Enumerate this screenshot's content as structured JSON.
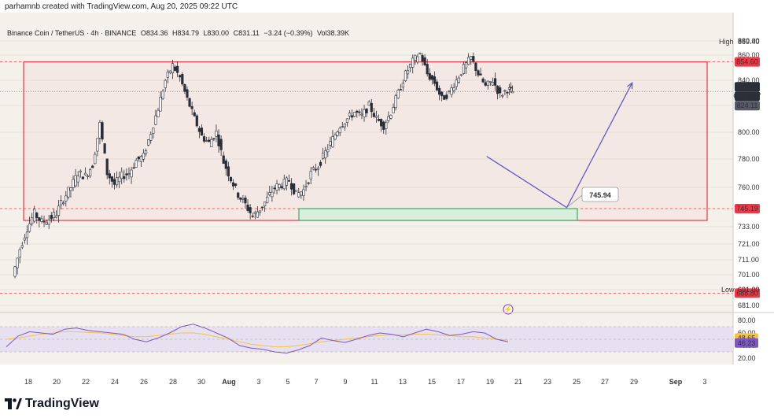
{
  "credit": "parhamnb created with TradingView.com, Aug 20, 2025 09:22 UTC",
  "symbol": {
    "name": "Binance Coin / TetherUS · 4h · BINANCE",
    "open": "O834.36",
    "high": "H834.79",
    "low": "L830.00",
    "close": "C831.11",
    "change": "−3.24 (−0.39%)",
    "volume": "Vol38.39K"
  },
  "brand": "TradingView",
  "colors": {
    "up": "#2a2e39",
    "down": "#2a2e39",
    "box_border": "#f23645",
    "dashed": "#f23645",
    "zone_fill": "#d7f0dc",
    "zone_border": "#1e9a5a",
    "arrow": "#5b4fc4",
    "rsi_line": "#7e57c2",
    "rsi_ma": "#f5c542",
    "rsi_band": "#e6e0f0"
  },
  "chart_data": [
    {
      "type": "candlestick",
      "price_ticks": [
        "880.00",
        "860.00",
        "840.00",
        "820.00",
        "800.00",
        "780.00",
        "760.00",
        "745.19",
        "733.00",
        "721.00",
        "711.00",
        "701.00",
        "691.00",
        "681.00"
      ],
      "x_ticks": [
        "18",
        "20",
        "22",
        "24",
        "26",
        "28",
        "30",
        "Aug",
        "3",
        "5",
        "7",
        "9",
        "11",
        "13",
        "15",
        "17",
        "19",
        "21",
        "23",
        "25",
        "27",
        "29",
        "Sep",
        "3"
      ],
      "labels": {
        "high_label": "High",
        "high_value": "869.40",
        "low_label": "Low",
        "low_value": "691.00",
        "level_top": "854.60",
        "level_bottom": "745.19",
        "level_low": "688.80",
        "last_price": "831.11",
        "countdown": "02:37:37",
        "prev_close": "824.11",
        "target": "745.94"
      },
      "levels": {
        "top": 854.6,
        "bottom": 745.19,
        "low": 688.8,
        "last": 831.11,
        "target": 745.94
      },
      "close_path": [
        [
          "Jul 17 00:00",
          700
        ],
        [
          "Jul 17 12:00",
          718
        ],
        [
          "Jul 18 00:00",
          732
        ],
        [
          "Jul 18 12:00",
          742
        ],
        [
          "Jul 19 00:00",
          736
        ],
        [
          "Jul 19 12:00",
          738
        ],
        [
          "Jul 20 00:00",
          742
        ],
        [
          "Jul 20 12:00",
          752
        ],
        [
          "Jul 21 00:00",
          760
        ],
        [
          "Jul 21 12:00",
          770
        ],
        [
          "Jul 22 00:00",
          768
        ],
        [
          "Jul 22 12:00",
          776
        ],
        [
          "Jul 23 00:00",
          806
        ],
        [
          "Jul 23 12:00",
          770
        ],
        [
          "Jul 24 00:00",
          762
        ],
        [
          "Jul 24 12:00",
          768
        ],
        [
          "Jul 25 00:00",
          770
        ],
        [
          "Jul 25 12:00",
          779
        ],
        [
          "Jul 26 00:00",
          782
        ],
        [
          "Jul 26 12:00",
          800
        ],
        [
          "Jul 27 00:00",
          818
        ],
        [
          "Jul 27 12:00",
          840
        ],
        [
          "Jul 28 00:00",
          852
        ],
        [
          "Jul 28 12:00",
          842
        ],
        [
          "Jul 29 00:00",
          825
        ],
        [
          "Jul 29 12:00",
          810
        ],
        [
          "Jul 30 00:00",
          797
        ],
        [
          "Jul 30 12:00",
          792
        ],
        [
          "Jul 31 00:00",
          800
        ],
        [
          "Jul 31 12:00",
          778
        ],
        [
          "Aug 1 00:00",
          766
        ],
        [
          "Aug 1 12:00",
          755
        ],
        [
          "Aug 2 00:00",
          748
        ],
        [
          "Aug 2 12:00",
          740
        ],
        [
          "Aug 3 00:00",
          745
        ],
        [
          "Aug 3 12:00",
          752
        ],
        [
          "Aug 4 00:00",
          760
        ],
        [
          "Aug 4 12:00",
          762
        ],
        [
          "Aug 5 00:00",
          765
        ],
        [
          "Aug 5 12:00",
          755
        ],
        [
          "Aug 6 00:00",
          758
        ],
        [
          "Aug 6 12:00",
          770
        ],
        [
          "Aug 7 00:00",
          775
        ],
        [
          "Aug 7 12:00",
          785
        ],
        [
          "Aug 8 00:00",
          795
        ],
        [
          "Aug 8 12:00",
          805
        ],
        [
          "Aug 9 00:00",
          810
        ],
        [
          "Aug 9 12:00",
          815
        ],
        [
          "Aug 10 00:00",
          812
        ],
        [
          "Aug 10 12:00",
          820
        ],
        [
          "Aug 11 00:00",
          810
        ],
        [
          "Aug 11 12:00",
          805
        ],
        [
          "Aug 12 00:00",
          815
        ],
        [
          "Aug 12 12:00",
          830
        ],
        [
          "Aug 13 00:00",
          845
        ],
        [
          "Aug 13 12:00",
          855
        ],
        [
          "Aug 14 00:00",
          862
        ],
        [
          "Aug 14 12:00",
          845
        ],
        [
          "Aug 15 00:00",
          838
        ],
        [
          "Aug 15 12:00",
          825
        ],
        [
          "Aug 16 00:00",
          830
        ],
        [
          "Aug 16 12:00",
          840
        ],
        [
          "Aug 17 00:00",
          850
        ],
        [
          "Aug 17 12:00",
          858
        ],
        [
          "Aug 18 00:00",
          845
        ],
        [
          "Aug 18 12:00",
          835
        ],
        [
          "Aug 19 00:00",
          840
        ],
        [
          "Aug 19 12:00",
          828
        ],
        [
          "Aug 20 00:00",
          833
        ],
        [
          "Aug 20 08:00",
          831
        ]
      ],
      "projection": [
        [
          "Aug 18 12:00",
          782
        ],
        [
          "Aug 24 00:00",
          745.94
        ],
        [
          "Aug 28 12:00",
          838
        ]
      ]
    },
    {
      "type": "line",
      "name": "RSI",
      "y_ticks": [
        "80.00",
        "60.00",
        "40.00",
        "20.00"
      ],
      "band": [
        30,
        70
      ],
      "labels": {
        "ma_value": "48.65",
        "rsi_value": "46.23"
      },
      "rsi": [
        38,
        55,
        62,
        60,
        58,
        66,
        68,
        64,
        62,
        60,
        58,
        50,
        46,
        52,
        60,
        70,
        74,
        68,
        60,
        52,
        40,
        36,
        34,
        30,
        28,
        33,
        40,
        52,
        48,
        45,
        50,
        56,
        60,
        58,
        54,
        60,
        66,
        62,
        56,
        58,
        62,
        60,
        50,
        46
      ],
      "ma": [
        50,
        52,
        55,
        58,
        60,
        62,
        62,
        61,
        60,
        58,
        56,
        54,
        54,
        56,
        58,
        60,
        60,
        58,
        54,
        50,
        46,
        42,
        40,
        38,
        38,
        40,
        43,
        46,
        48,
        50,
        52,
        54,
        56,
        57,
        57,
        58,
        58,
        57,
        56,
        54,
        54,
        52,
        50,
        48.65
      ]
    }
  ]
}
